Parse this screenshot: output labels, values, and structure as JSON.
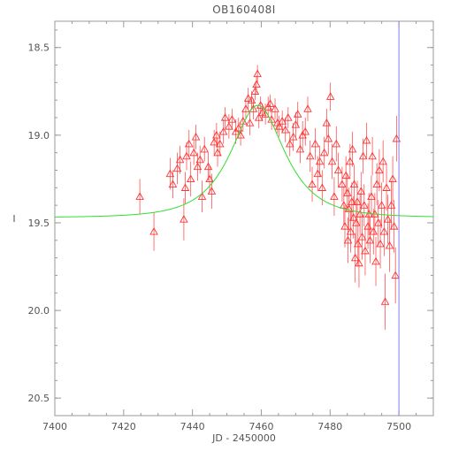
{
  "chart_data": {
    "type": "scatter",
    "title": "OB160408I",
    "xlabel": "JD - 2450000",
    "ylabel": "I",
    "xlim": [
      7400,
      7510
    ],
    "ylim": [
      20.6,
      18.35
    ],
    "y_inverted": true,
    "xticks": [
      7400,
      7420,
      7440,
      7460,
      7480,
      7500
    ],
    "yticks": [
      18.5,
      19.0,
      19.5,
      20.0,
      20.5
    ],
    "xtick_labels": [
      "7400",
      "7420",
      "7440",
      "7460",
      "7480",
      "7500"
    ],
    "ytick_labels": [
      "18.5",
      "19.0",
      "19.5",
      "20.0",
      "20.5"
    ],
    "grid": false,
    "legend": "none",
    "colors": {
      "data": "#ff3333",
      "model": "#33dd33",
      "vline": "#8080ee",
      "axes": "#999999",
      "text": "#555555"
    },
    "vline_x": 7500,
    "model": {
      "name": "",
      "t0": 7459,
      "baseline": 19.47,
      "peak": 18.83,
      "tE": 12
    },
    "series": [
      {
        "type": "errorbar",
        "marker": "triangle-up",
        "points": [
          [
            7424.7,
            19.35,
            0.1
          ],
          [
            7428.8,
            19.55,
            0.11
          ],
          [
            7433.5,
            19.22,
            0.09
          ],
          [
            7434.3,
            19.28,
            0.08
          ],
          [
            7435.6,
            19.19,
            0.09
          ],
          [
            7436.4,
            19.14,
            0.08
          ],
          [
            7437.5,
            19.48,
            0.12
          ],
          [
            7437.9,
            19.3,
            0.09
          ],
          [
            7438.3,
            19.12,
            0.08
          ],
          [
            7439.0,
            19.05,
            0.08
          ],
          [
            7439.5,
            19.25,
            0.1
          ],
          [
            7440.4,
            19.1,
            0.07
          ],
          [
            7441.0,
            19.01,
            0.07
          ],
          [
            7441.5,
            19.18,
            0.08
          ],
          [
            7442.2,
            19.14,
            0.08
          ],
          [
            7442.8,
            19.35,
            0.09
          ],
          [
            7443.5,
            19.08,
            0.07
          ],
          [
            7444.6,
            19.18,
            0.08
          ],
          [
            7445.0,
            19.25,
            0.08
          ],
          [
            7445.6,
            19.32,
            0.1
          ],
          [
            7446.3,
            19.04,
            0.07
          ],
          [
            7447.0,
            19.0,
            0.07
          ],
          [
            7447.3,
            19.1,
            0.08
          ],
          [
            7448.0,
            19.05,
            0.07
          ],
          [
            7449.0,
            18.98,
            0.07
          ],
          [
            7449.5,
            18.9,
            0.06
          ],
          [
            7450.6,
            18.95,
            0.07
          ],
          [
            7451.5,
            18.91,
            0.06
          ],
          [
            7452.6,
            18.98,
            0.07
          ],
          [
            7453.4,
            18.96,
            0.06
          ],
          [
            7454.0,
            19.0,
            0.06
          ],
          [
            7454.7,
            18.92,
            0.06
          ],
          [
            7455.5,
            18.85,
            0.06
          ],
          [
            7456.2,
            18.79,
            0.06
          ],
          [
            7456.7,
            18.93,
            0.07
          ],
          [
            7457.2,
            18.8,
            0.05
          ],
          [
            7457.7,
            18.85,
            0.06
          ],
          [
            7458.2,
            18.75,
            0.05
          ],
          [
            7458.6,
            18.71,
            0.05
          ],
          [
            7458.9,
            18.65,
            0.05
          ],
          [
            7459.3,
            18.9,
            0.06
          ],
          [
            7459.8,
            18.83,
            0.05
          ],
          [
            7460.3,
            18.87,
            0.05
          ],
          [
            7461.2,
            18.88,
            0.06
          ],
          [
            7462.0,
            18.84,
            0.06
          ],
          [
            7462.6,
            18.82,
            0.05
          ],
          [
            7463.0,
            18.91,
            0.06
          ],
          [
            7464.0,
            18.85,
            0.06
          ],
          [
            7464.7,
            18.93,
            0.06
          ],
          [
            7465.2,
            18.95,
            0.06
          ],
          [
            7466.1,
            18.92,
            0.06
          ],
          [
            7467.0,
            18.97,
            0.07
          ],
          [
            7467.8,
            18.9,
            0.06
          ],
          [
            7468.3,
            19.05,
            0.07
          ],
          [
            7469.3,
            19.01,
            0.08
          ],
          [
            7470.0,
            18.94,
            0.07
          ],
          [
            7470.6,
            18.88,
            0.07
          ],
          [
            7471.3,
            19.08,
            0.08
          ],
          [
            7472.0,
            19.0,
            0.08
          ],
          [
            7472.8,
            18.98,
            0.08
          ],
          [
            7473.5,
            18.85,
            0.07
          ],
          [
            7474.2,
            19.12,
            0.09
          ],
          [
            7474.8,
            19.28,
            0.1
          ],
          [
            7475.7,
            19.05,
            0.09
          ],
          [
            7476.4,
            19.22,
            0.1
          ],
          [
            7477.0,
            19.15,
            0.09
          ],
          [
            7477.7,
            19.3,
            0.1
          ],
          [
            7478.3,
            19.1,
            0.09
          ],
          [
            7479.0,
            18.93,
            0.08
          ],
          [
            7479.5,
            19.02,
            0.09
          ],
          [
            7480.1,
            18.78,
            0.08
          ],
          [
            7480.6,
            19.15,
            0.1
          ],
          [
            7481.2,
            19.35,
            0.11
          ],
          [
            7481.8,
            19.05,
            0.1
          ],
          [
            7482.4,
            19.2,
            0.1
          ],
          [
            7483.5,
            19.28,
            0.1
          ],
          [
            7484.0,
            19.4,
            0.11
          ],
          [
            7484.3,
            19.52,
            0.12
          ],
          [
            7484.6,
            19.23,
            0.11
          ],
          [
            7485.0,
            19.33,
            0.11
          ],
          [
            7485.2,
            19.6,
            0.13
          ],
          [
            7485.5,
            19.42,
            0.12
          ],
          [
            7485.8,
            19.15,
            0.1
          ],
          [
            7486.0,
            19.55,
            0.12
          ],
          [
            7486.3,
            19.38,
            0.11
          ],
          [
            7486.5,
            19.08,
            0.1
          ],
          [
            7486.8,
            19.47,
            0.12
          ],
          [
            7487.0,
            19.28,
            0.11
          ],
          [
            7487.3,
            19.7,
            0.14
          ],
          [
            7487.6,
            19.5,
            0.12
          ],
          [
            7487.9,
            19.38,
            0.12
          ],
          [
            7488.1,
            19.62,
            0.13
          ],
          [
            7488.4,
            19.73,
            0.14
          ],
          [
            7488.7,
            19.45,
            0.12
          ],
          [
            7489.0,
            19.32,
            0.11
          ],
          [
            7489.3,
            19.58,
            0.13
          ],
          [
            7489.6,
            19.12,
            0.1
          ],
          [
            7489.9,
            19.4,
            0.12
          ],
          [
            7490.2,
            19.66,
            0.14
          ],
          [
            7490.6,
            19.03,
            0.1
          ],
          [
            7491.0,
            19.52,
            0.13
          ],
          [
            7491.3,
            19.45,
            0.12
          ],
          [
            7491.6,
            19.6,
            0.13
          ],
          [
            7492.0,
            19.35,
            0.12
          ],
          [
            7492.3,
            19.12,
            0.11
          ],
          [
            7492.6,
            19.55,
            0.13
          ],
          [
            7493.0,
            19.45,
            0.12
          ],
          [
            7493.3,
            19.72,
            0.14
          ],
          [
            7493.6,
            19.28,
            0.12
          ],
          [
            7494.0,
            19.5,
            0.13
          ],
          [
            7494.3,
            19.2,
            0.12
          ],
          [
            7494.6,
            19.62,
            0.14
          ],
          [
            7495.0,
            19.4,
            0.13
          ],
          [
            7495.4,
            19.15,
            0.12
          ],
          [
            7495.7,
            19.55,
            0.14
          ],
          [
            7496.0,
            19.95,
            0.16
          ],
          [
            7496.4,
            19.3,
            0.13
          ],
          [
            7496.8,
            19.48,
            0.14
          ],
          [
            7497.3,
            19.63,
            0.15
          ],
          [
            7497.8,
            19.4,
            0.14
          ],
          [
            7498.2,
            19.25,
            0.13
          ],
          [
            7498.6,
            19.52,
            0.15
          ],
          [
            7499.0,
            19.8,
            0.16
          ],
          [
            7499.3,
            19.02,
            0.13
          ]
        ]
      }
    ]
  }
}
